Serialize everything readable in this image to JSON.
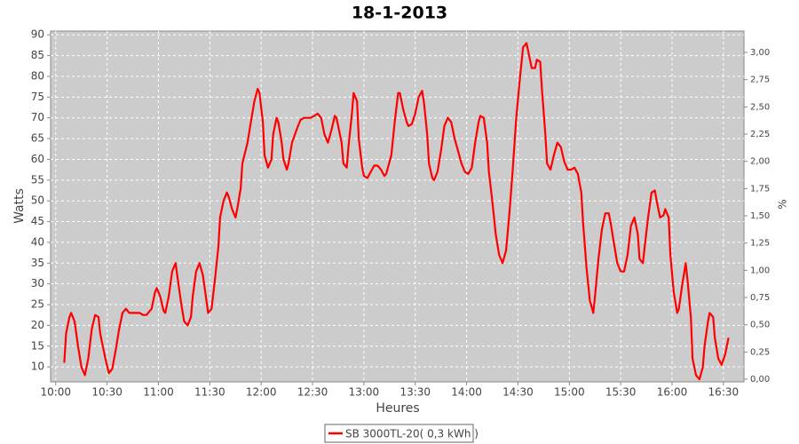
{
  "chart_data": {
    "type": "line",
    "title": "18-1-2013",
    "x_label": "Heures",
    "y_label": "Watts",
    "y2_label": "%",
    "grid": true,
    "legend": "bottom",
    "xlim": [
      597,
      1002
    ],
    "xticks": [
      {
        "value": 600,
        "label": "10:00"
      },
      {
        "value": 630,
        "label": "10:30"
      },
      {
        "value": 660,
        "label": "11:00"
      },
      {
        "value": 690,
        "label": "11:30"
      },
      {
        "value": 720,
        "label": "12:00"
      },
      {
        "value": 750,
        "label": "12:30"
      },
      {
        "value": 780,
        "label": "13:00"
      },
      {
        "value": 810,
        "label": "13:30"
      },
      {
        "value": 840,
        "label": "14:00"
      },
      {
        "value": 870,
        "label": "14:30"
      },
      {
        "value": 900,
        "label": "15:00"
      },
      {
        "value": 930,
        "label": "15:30"
      },
      {
        "value": 960,
        "label": "16:00"
      },
      {
        "value": 990,
        "label": "16:30"
      }
    ],
    "ylim": [
      6.4,
      90.9
    ],
    "yticks": [
      10,
      15,
      20,
      25,
      30,
      35,
      40,
      45,
      50,
      55,
      60,
      65,
      70,
      75,
      80,
      85,
      90
    ],
    "y2lim": [
      -0.024,
      3.196
    ],
    "y2ticks": [
      {
        "value": 0,
        "label": "0,00"
      },
      {
        "value": 0.25,
        "label": "0,25"
      },
      {
        "value": 0.5,
        "label": "0,50"
      },
      {
        "value": 0.75,
        "label": "0,75"
      },
      {
        "value": 1,
        "label": "1,00"
      },
      {
        "value": 1.25,
        "label": "1,25"
      },
      {
        "value": 1.5,
        "label": "1,50"
      },
      {
        "value": 1.75,
        "label": "1,75"
      },
      {
        "value": 2,
        "label": "2,00"
      },
      {
        "value": 2.25,
        "label": "2,25"
      },
      {
        "value": 2.5,
        "label": "2,50"
      },
      {
        "value": 2.75,
        "label": "2,75"
      },
      {
        "value": 3,
        "label": "3,00"
      }
    ],
    "x": [
      605,
      606,
      608,
      609,
      611,
      613,
      615,
      617,
      619,
      621,
      623,
      625,
      626,
      629,
      631,
      633,
      635,
      637,
      639,
      641,
      643,
      645,
      647,
      649,
      651,
      653,
      656,
      658,
      659,
      661,
      663,
      664,
      666,
      668,
      670,
      671,
      673,
      675,
      677,
      679,
      680,
      682,
      684,
      686,
      688,
      689,
      691,
      693,
      695,
      696,
      698,
      700,
      701,
      703,
      705,
      706,
      708,
      709,
      712,
      714,
      716,
      718,
      719,
      721,
      722,
      724,
      726,
      727,
      729,
      730,
      732,
      733,
      735,
      736,
      738,
      741,
      743,
      745,
      747,
      749,
      751,
      753,
      755,
      757,
      759,
      761,
      763,
      764,
      767,
      768,
      770,
      771,
      773,
      774,
      776,
      777,
      779,
      780,
      782,
      784,
      786,
      788,
      790,
      792,
      793,
      796,
      798,
      800,
      801,
      803,
      805,
      806,
      808,
      810,
      812,
      814,
      815,
      817,
      818,
      820,
      821,
      823,
      825,
      827,
      829,
      831,
      833,
      835,
      837,
      839,
      841,
      843,
      845,
      847,
      848,
      850,
      852,
      853,
      855,
      857,
      859,
      861,
      863,
      865,
      867,
      869,
      871,
      873,
      875,
      876,
      878,
      880,
      881,
      883,
      884,
      886,
      887,
      889,
      891,
      893,
      895,
      897,
      899,
      901,
      903,
      905,
      907,
      908,
      910,
      912,
      914,
      915,
      917,
      919,
      921,
      923,
      924,
      926,
      928,
      930,
      932,
      934,
      936,
      938,
      940,
      941,
      943,
      944,
      946,
      948,
      950,
      951,
      953,
      955,
      956,
      958,
      959,
      961,
      963,
      964,
      966,
      968,
      969,
      971,
      972,
      974,
      976,
      978,
      979,
      981,
      982,
      984,
      985,
      987,
      989,
      991,
      993
    ],
    "series": [
      {
        "name": "SB 3000TL-20( 0,3 kWh )",
        "color": "#ff0000",
        "values": [
          11,
          18,
          22,
          23,
          21,
          15,
          10,
          8,
          12,
          19,
          22.5,
          22,
          18,
          12,
          8.5,
          9.5,
          14,
          19,
          23,
          24,
          23,
          23,
          23,
          23,
          22.5,
          22.5,
          24,
          28,
          29,
          27,
          23.5,
          23,
          27,
          33,
          35,
          32,
          26,
          21,
          20,
          22,
          27,
          33,
          35,
          32,
          26,
          23,
          24,
          31,
          39,
          46,
          50,
          52,
          51,
          48,
          46,
          48,
          53,
          59,
          64,
          69,
          74,
          77,
          76,
          69,
          61,
          58,
          60,
          66,
          70,
          69,
          64,
          60,
          57.5,
          59,
          64,
          67.5,
          69.5,
          70,
          70,
          70,
          70.5,
          71,
          70,
          66,
          64,
          67,
          70.5,
          70,
          64,
          59,
          58,
          63,
          71,
          76,
          74,
          65,
          58,
          56,
          55.5,
          57,
          58.5,
          58.5,
          57.5,
          56,
          56.5,
          61,
          69,
          76,
          76,
          72,
          69,
          68,
          68.5,
          71,
          75,
          76.5,
          74,
          66,
          59,
          55.5,
          55,
          57,
          62,
          68,
          70,
          69,
          65,
          62,
          59,
          57,
          56.5,
          58,
          64,
          69,
          70.5,
          70,
          64,
          57,
          50,
          42,
          37,
          35,
          38,
          47,
          58,
          70,
          79,
          87,
          88,
          86,
          82,
          82,
          84,
          83.5,
          77,
          66,
          59,
          57.5,
          61,
          64,
          63,
          59.5,
          57.5,
          57.5,
          58,
          56.5,
          52,
          45,
          34,
          26,
          23,
          27,
          36,
          43,
          47,
          47,
          45,
          40,
          35,
          33,
          33,
          37,
          44,
          46,
          42,
          36,
          35,
          39,
          46,
          52,
          52.5,
          50,
          46,
          46.5,
          48,
          46,
          37,
          28,
          23,
          24,
          30,
          35,
          31,
          22,
          12,
          8,
          7,
          10,
          15,
          21,
          23,
          22,
          17,
          12,
          10.5,
          13,
          17
        ]
      }
    ]
  }
}
